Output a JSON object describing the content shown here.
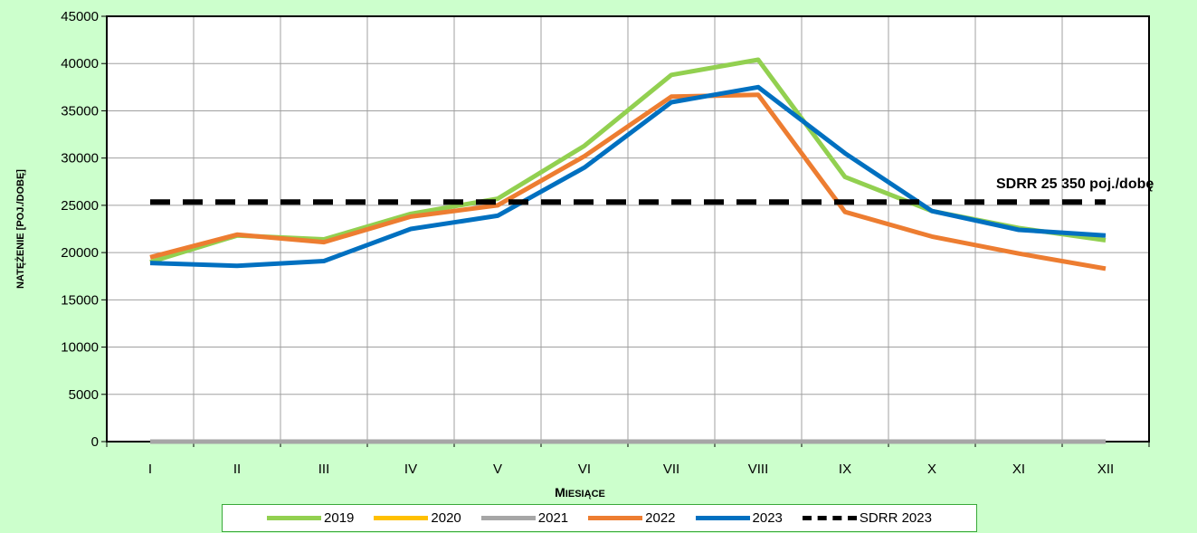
{
  "chart_data": {
    "type": "line",
    "categories": [
      "I",
      "II",
      "III",
      "IV",
      "V",
      "VI",
      "VII",
      "VIII",
      "IX",
      "X",
      "XI",
      "XII"
    ],
    "series": [
      {
        "name": "2019",
        "color": "#92d050",
        "values": [
          19000,
          21800,
          21400,
          24100,
          25700,
          31300,
          38800,
          40400,
          28000,
          24400,
          22600,
          21300
        ]
      },
      {
        "name": "2020",
        "color": "#ffc000",
        "values": [
          0,
          0,
          0,
          0,
          0,
          0,
          0,
          0,
          0,
          0,
          0,
          0
        ]
      },
      {
        "name": "2021",
        "color": "#a6a6a6",
        "values": [
          0,
          0,
          0,
          0,
          0,
          0,
          0,
          0,
          0,
          0,
          0,
          0
        ]
      },
      {
        "name": "2022",
        "color": "#ed7d31",
        "values": [
          19500,
          21900,
          21100,
          23800,
          25000,
          30200,
          36500,
          36700,
          24300,
          21700,
          19900,
          18300
        ]
      },
      {
        "name": "2023",
        "color": "#0070c0",
        "values": [
          18900,
          18600,
          19100,
          22500,
          23900,
          29000,
          35900,
          37500,
          30500,
          24400,
          22400,
          21800
        ]
      },
      {
        "name": "SDRR 2023",
        "color": "#000000",
        "dashed": true,
        "values": [
          25350,
          25350,
          25350,
          25350,
          25350,
          25350,
          25350,
          25350,
          25350,
          25350,
          25350,
          25350
        ]
      }
    ],
    "xlabel": "Miesiące",
    "ylabel": "natężenie [poj./dobę]",
    "ylim": [
      0,
      45000
    ],
    "yticks": [
      0,
      5000,
      10000,
      15000,
      20000,
      25000,
      30000,
      35000,
      40000,
      45000
    ],
    "grid": true,
    "legend_position": "bottom",
    "annotation": "SDRR 25 350 poj./dobę"
  }
}
